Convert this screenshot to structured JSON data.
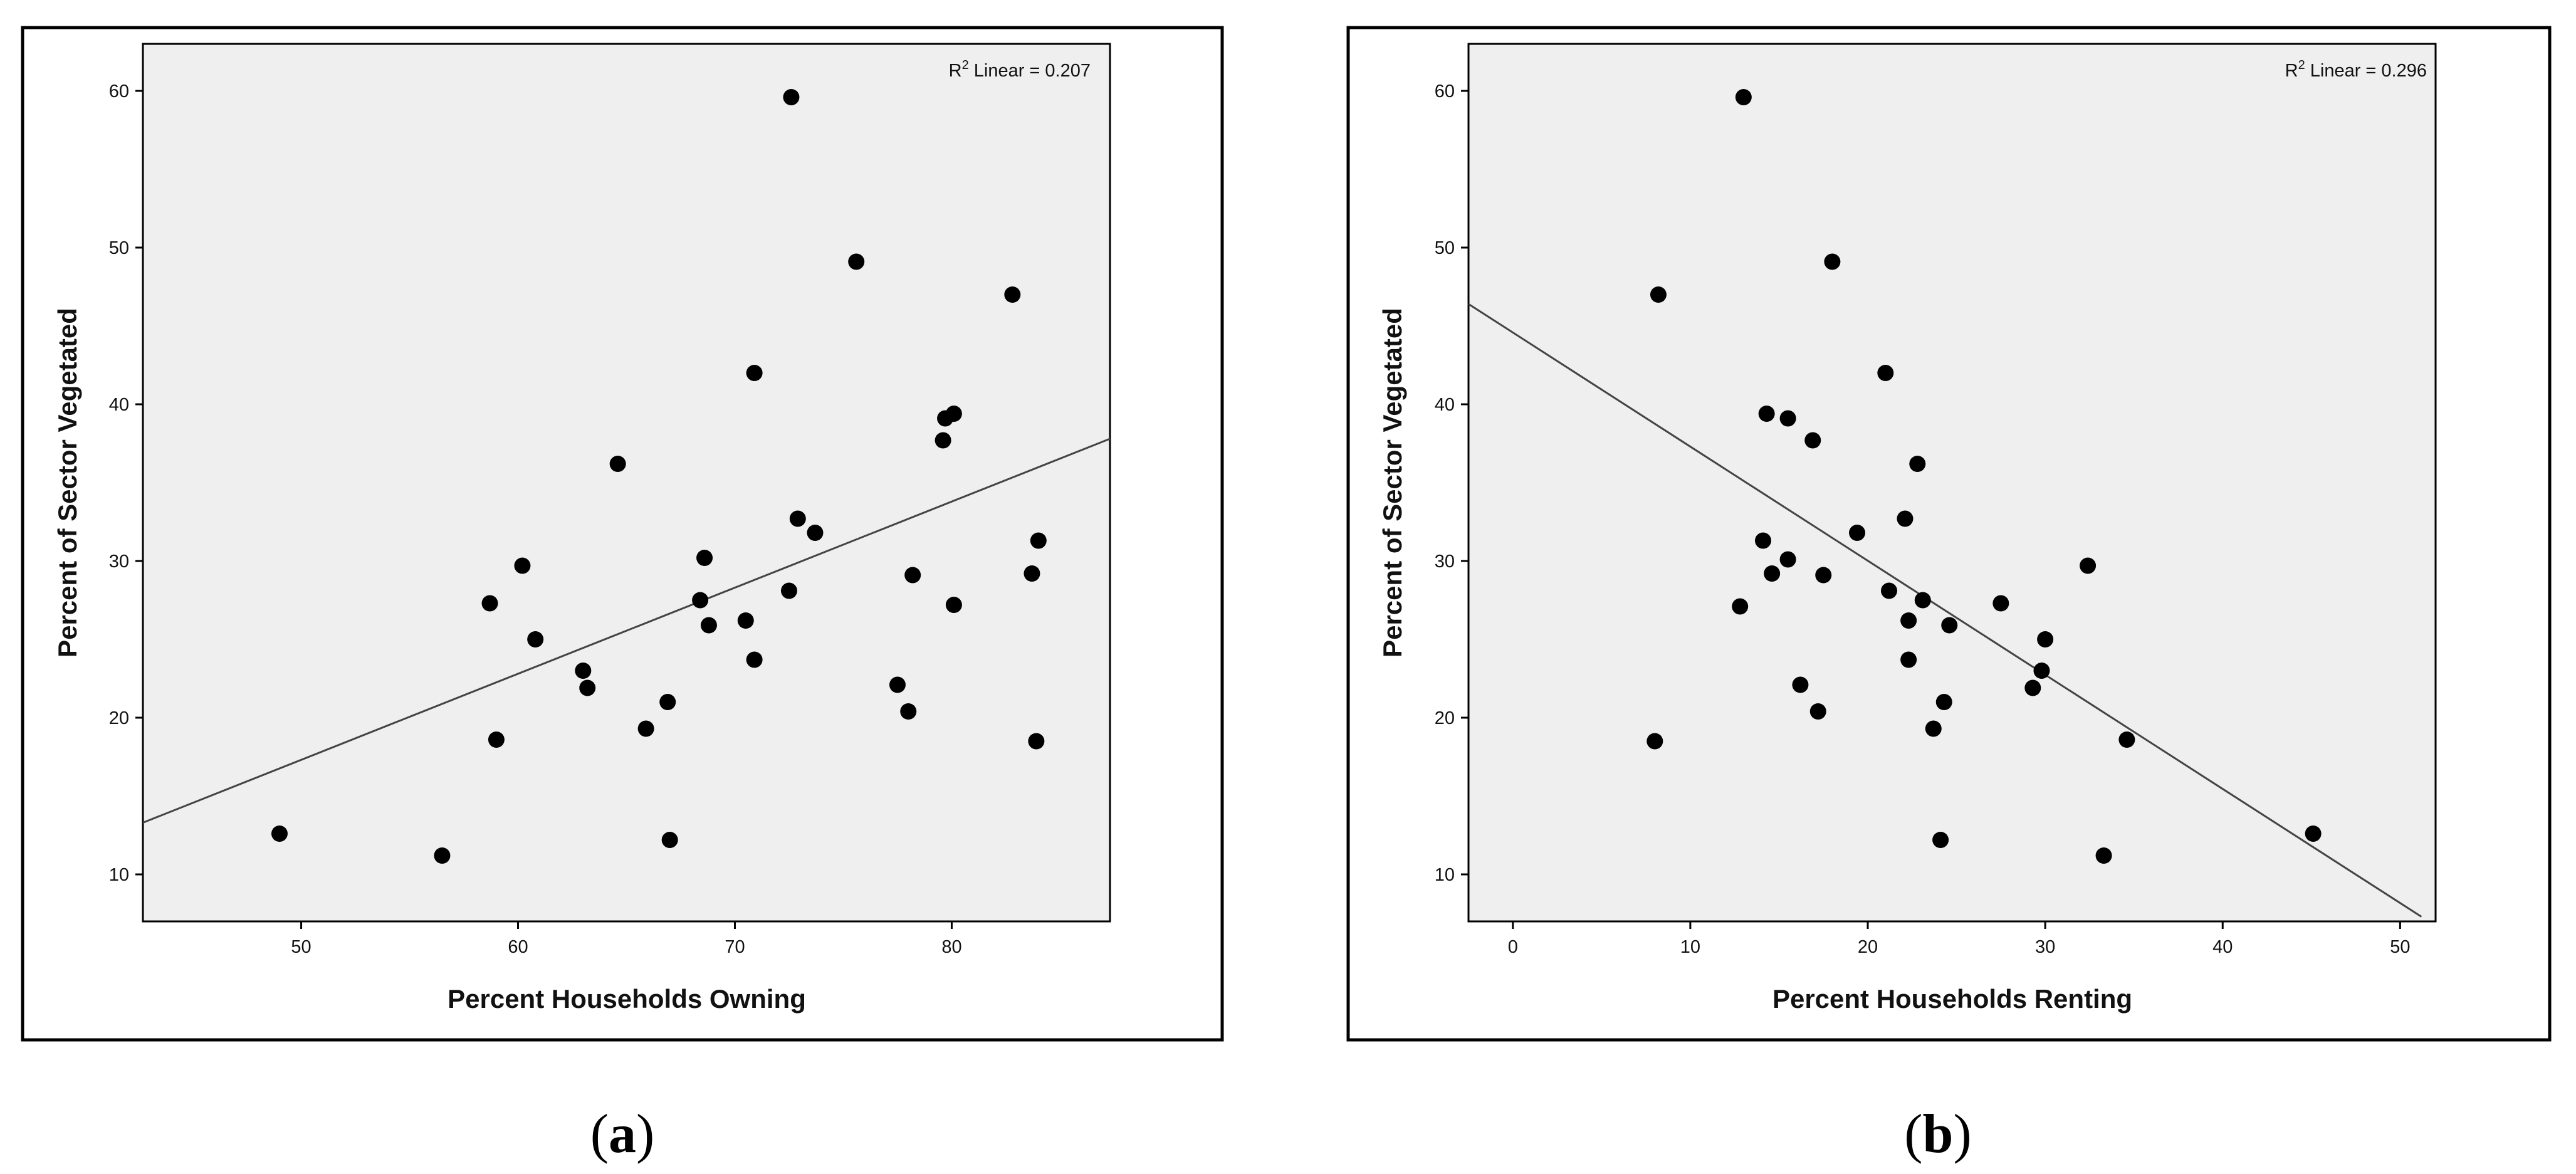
{
  "colors": {
    "plot_background": "#efefef",
    "frame": "#000000",
    "point": "#000000",
    "fit_line": "#444444"
  },
  "chart_data": [
    {
      "type": "scatter",
      "panel_label": "a",
      "panel_label_open": "(",
      "panel_label_close": ")",
      "title": "",
      "xlabel": "Percent Households Owning",
      "ylabel": "Percent of Sector Vegetated",
      "xlim": [
        42.7,
        87.3
      ],
      "ylim": [
        7.0,
        63.0
      ],
      "xticks": [
        50,
        60,
        70,
        80
      ],
      "yticks": [
        10,
        20,
        30,
        40,
        50,
        60
      ],
      "grid": false,
      "r2_prefix": "R",
      "r2_sup": "2",
      "r2_suffix": " Linear = 0.207",
      "fit_line": [
        [
          42.7,
          13.3
        ],
        [
          87.3,
          37.8
        ]
      ],
      "points": [
        [
          49.0,
          12.6
        ],
        [
          56.5,
          11.2
        ],
        [
          58.7,
          27.3
        ],
        [
          59.0,
          18.6
        ],
        [
          60.2,
          29.7
        ],
        [
          60.8,
          25.0
        ],
        [
          63.0,
          23.0
        ],
        [
          63.2,
          21.9
        ],
        [
          64.6,
          36.2
        ],
        [
          65.9,
          19.3
        ],
        [
          66.9,
          21.0
        ],
        [
          67.0,
          12.2
        ],
        [
          68.4,
          27.5
        ],
        [
          68.6,
          30.2
        ],
        [
          68.8,
          25.9
        ],
        [
          70.5,
          26.2
        ],
        [
          70.9,
          23.7
        ],
        [
          70.9,
          42.0
        ],
        [
          72.5,
          28.1
        ],
        [
          72.6,
          59.6
        ],
        [
          72.9,
          32.7
        ],
        [
          73.7,
          31.8
        ],
        [
          75.6,
          49.1
        ],
        [
          77.5,
          22.1
        ],
        [
          78.0,
          20.4
        ],
        [
          78.2,
          29.1
        ],
        [
          79.6,
          37.7
        ],
        [
          79.7,
          39.1
        ],
        [
          80.1,
          39.4
        ],
        [
          80.1,
          27.2
        ],
        [
          82.8,
          47.0
        ],
        [
          83.7,
          29.2
        ],
        [
          83.9,
          18.5
        ],
        [
          84.0,
          31.3
        ]
      ]
    },
    {
      "type": "scatter",
      "panel_label": "b",
      "panel_label_open": "(",
      "panel_label_close": ")",
      "title": "",
      "xlabel": "Percent Households Renting",
      "ylabel": "Percent of Sector Vegetated",
      "xlim": [
        -2.5,
        52.0
      ],
      "ylim": [
        7.0,
        63.0
      ],
      "xticks": [
        0,
        10,
        20,
        30,
        40,
        50
      ],
      "yticks": [
        10,
        20,
        30,
        40,
        50,
        60
      ],
      "grid": false,
      "r2_prefix": "R",
      "r2_sup": "2",
      "r2_suffix": " Linear = 0.296",
      "fit_line": [
        [
          -2.5,
          46.4
        ],
        [
          51.2,
          7.3
        ]
      ],
      "points": [
        [
          8.0,
          18.5
        ],
        [
          8.2,
          47.0
        ],
        [
          12.8,
          27.1
        ],
        [
          13.0,
          59.6
        ],
        [
          14.1,
          31.3
        ],
        [
          14.3,
          39.4
        ],
        [
          14.6,
          29.2
        ],
        [
          15.5,
          30.1
        ],
        [
          15.5,
          39.1
        ],
        [
          16.2,
          22.1
        ],
        [
          16.9,
          37.7
        ],
        [
          17.2,
          20.4
        ],
        [
          17.5,
          29.1
        ],
        [
          18.0,
          49.1
        ],
        [
          19.4,
          31.8
        ],
        [
          21.0,
          42.0
        ],
        [
          21.2,
          28.1
        ],
        [
          22.1,
          32.7
        ],
        [
          22.3,
          26.2
        ],
        [
          22.3,
          23.7
        ],
        [
          22.8,
          36.2
        ],
        [
          23.1,
          27.5
        ],
        [
          23.7,
          19.3
        ],
        [
          24.1,
          12.2
        ],
        [
          24.3,
          21.0
        ],
        [
          24.6,
          25.9
        ],
        [
          27.5,
          27.3
        ],
        [
          29.3,
          21.9
        ],
        [
          29.8,
          23.0
        ],
        [
          30.0,
          25.0
        ],
        [
          32.4,
          29.7
        ],
        [
          33.3,
          11.2
        ],
        [
          34.6,
          18.6
        ],
        [
          45.1,
          12.6
        ]
      ]
    }
  ]
}
